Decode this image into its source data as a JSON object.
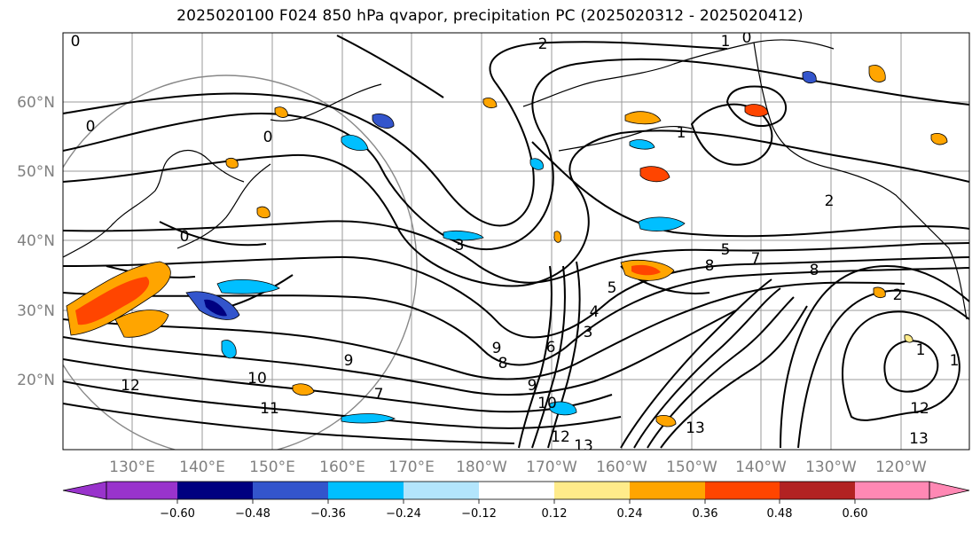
{
  "title": "2025020100 F024 850 hPa qvapor, precipitation PC (2025020312 - 2025020412)",
  "map": {
    "lat_labels": [
      "60°N",
      "50°N",
      "40°N",
      "30°N",
      "20°N"
    ],
    "lon_labels": [
      "130°E",
      "140°E",
      "150°E",
      "160°E",
      "170°E",
      "180°W",
      "170°W",
      "160°W",
      "150°W",
      "140°W",
      "130°W",
      "120°W"
    ],
    "contour_labels": [
      "0",
      "0",
      "0",
      "0",
      "2",
      "1",
      "0",
      "1",
      "2",
      "3",
      "5",
      "8",
      "8",
      "7",
      "9",
      "10",
      "10",
      "12",
      "12",
      "13",
      "13",
      "13",
      "12",
      "11",
      "9",
      "9",
      "8",
      "7",
      "6",
      "5",
      "4",
      "3",
      "2",
      "1",
      "1"
    ]
  },
  "colorbar": {
    "colors": [
      "#9933cc",
      "#000080",
      "#3355cc",
      "#00bfff",
      "#b3e5fc",
      "#ffffff",
      "#ffeb8a",
      "#ffa500",
      "#ff4500",
      "#b22222",
      "#ff88b4"
    ],
    "tick_labels": [
      "−0.60",
      "−0.48",
      "−0.36",
      "−0.24",
      "−0.12",
      "0.12",
      "0.24",
      "0.36",
      "0.48",
      "0.60"
    ]
  }
}
